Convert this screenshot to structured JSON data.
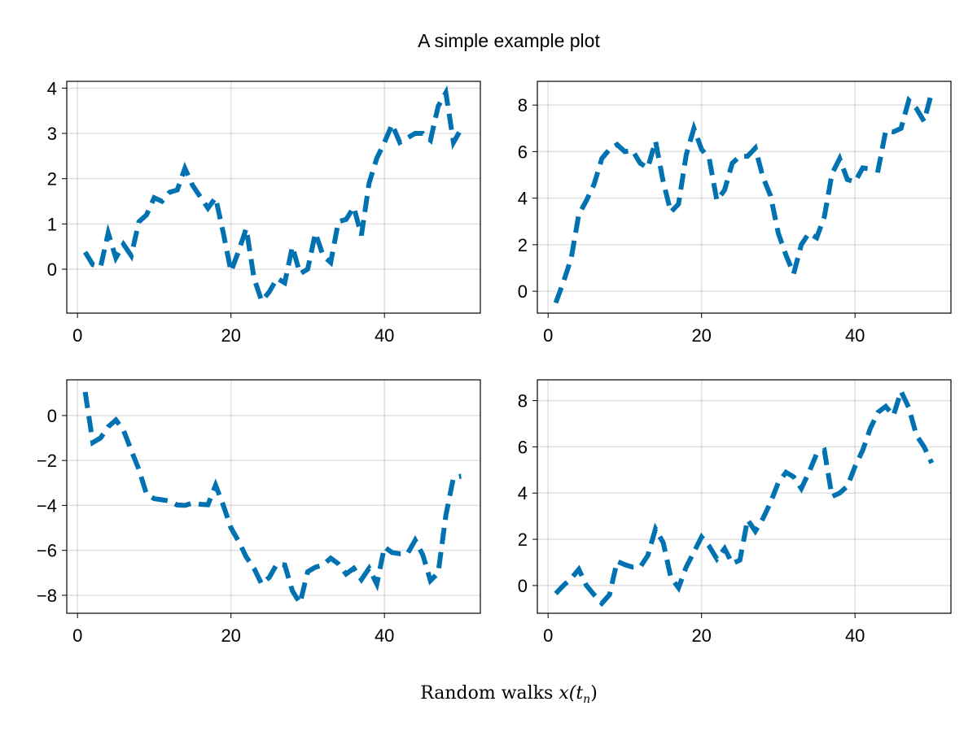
{
  "title": "A simple example plot",
  "xlabel_text": "Random walks ",
  "xlabel_math": "x(t",
  "xlabel_sub": "n",
  "xlabel_close": ")",
  "line_color": "#0072b2",
  "chart_data": [
    {
      "type": "line",
      "line_style": "dashed",
      "grid": true,
      "xlim": [
        -1.4,
        52.5
      ],
      "ylim": [
        -0.97,
        4.15
      ],
      "xticks": [
        0,
        20,
        40
      ],
      "yticks": [
        0,
        1,
        2,
        3,
        4
      ],
      "x": [
        1,
        2,
        3,
        4,
        5,
        6,
        7,
        8,
        9,
        10,
        11,
        12,
        13,
        14,
        15,
        16,
        17,
        18,
        19,
        20,
        21,
        22,
        23,
        24,
        25,
        26,
        27,
        28,
        29,
        30,
        31,
        32,
        33,
        34,
        35,
        36,
        37,
        38,
        39,
        40,
        41,
        42,
        43,
        44,
        45,
        46,
        47,
        48,
        49,
        50
      ],
      "values": [
        0.38,
        0.1,
        0.05,
        0.8,
        0.25,
        0.55,
        0.3,
        1.05,
        1.2,
        1.58,
        1.5,
        1.7,
        1.75,
        2.23,
        1.85,
        1.6,
        1.35,
        1.58,
        0.8,
        -0.05,
        0.4,
        0.9,
        -0.2,
        -0.7,
        -0.5,
        -0.2,
        -0.3,
        0.5,
        -0.1,
        0.0,
        0.8,
        0.3,
        0.15,
        1.05,
        1.1,
        1.37,
        0.75,
        1.9,
        2.45,
        2.8,
        3.2,
        2.8,
        2.9,
        3.0,
        3.0,
        2.85,
        3.6,
        3.9,
        2.8,
        3.1
      ]
    },
    {
      "type": "line",
      "line_style": "dashed",
      "grid": true,
      "xlim": [
        -1.4,
        52.5
      ],
      "ylim": [
        -0.94,
        9.02
      ],
      "xticks": [
        0,
        20,
        40
      ],
      "yticks": [
        0,
        2,
        4,
        6,
        8
      ],
      "x": [
        1,
        2,
        3,
        4,
        5,
        6,
        7,
        8,
        9,
        10,
        11,
        12,
        13,
        14,
        15,
        16,
        17,
        18,
        19,
        20,
        21,
        22,
        23,
        24,
        25,
        26,
        27,
        28,
        29,
        30,
        31,
        32,
        33,
        34,
        35,
        36,
        37,
        38,
        39,
        40,
        41,
        42,
        43,
        44,
        45,
        46,
        47,
        48,
        49,
        50
      ],
      "values": [
        -0.5,
        0.4,
        1.4,
        3.3,
        3.9,
        4.6,
        5.7,
        6.1,
        6.3,
        6.0,
        6.05,
        5.5,
        5.3,
        6.45,
        4.7,
        3.4,
        3.75,
        5.85,
        7.0,
        6.1,
        5.7,
        3.9,
        4.35,
        5.5,
        5.8,
        5.8,
        6.15,
        4.9,
        4.1,
        2.5,
        1.55,
        0.75,
        2.0,
        2.5,
        2.3,
        3.2,
        5.05,
        5.7,
        4.8,
        4.7,
        5.3,
        5.25,
        5.2,
        6.9,
        6.85,
        7.0,
        8.2,
        7.85,
        7.3,
        8.55
      ]
    },
    {
      "type": "line",
      "line_style": "dashed",
      "grid": true,
      "xlim": [
        -1.4,
        52.5
      ],
      "ylim": [
        -8.8,
        1.59
      ],
      "xticks": [
        0,
        20,
        40
      ],
      "yticks": [
        0,
        -2,
        -4,
        -6,
        -8
      ],
      "x": [
        1,
        2,
        3,
        4,
        5,
        6,
        7,
        8,
        9,
        10,
        11,
        12,
        13,
        14,
        15,
        16,
        17,
        18,
        19,
        20,
        21,
        22,
        23,
        24,
        25,
        26,
        27,
        28,
        29,
        30,
        31,
        32,
        33,
        34,
        35,
        36,
        37,
        38,
        39,
        40,
        41,
        42,
        43,
        44,
        45,
        46,
        47,
        48,
        49,
        50
      ],
      "values": [
        1.05,
        -1.2,
        -1.0,
        -0.5,
        -0.2,
        -0.65,
        -1.55,
        -2.4,
        -3.5,
        -3.7,
        -3.75,
        -3.8,
        -3.98,
        -4.0,
        -3.9,
        -3.95,
        -3.97,
        -3.1,
        -4.0,
        -5.0,
        -5.6,
        -6.3,
        -6.8,
        -7.5,
        -7.2,
        -6.6,
        -6.65,
        -7.8,
        -8.35,
        -6.95,
        -6.75,
        -6.65,
        -6.35,
        -6.6,
        -7.05,
        -6.8,
        -7.3,
        -6.8,
        -7.5,
        -5.85,
        -6.1,
        -6.15,
        -6.15,
        -5.55,
        -6.2,
        -7.35,
        -7.0,
        -4.45,
        -2.75,
        -2.7
      ]
    },
    {
      "type": "line",
      "line_style": "dashed",
      "grid": true,
      "xlim": [
        -1.4,
        52.5
      ],
      "ylim": [
        -1.2,
        8.9
      ],
      "xticks": [
        0,
        20,
        40
      ],
      "yticks": [
        0,
        2,
        4,
        6,
        8
      ],
      "x": [
        1,
        2,
        3,
        4,
        5,
        6,
        7,
        8,
        9,
        10,
        11,
        12,
        13,
        14,
        15,
        16,
        17,
        18,
        19,
        20,
        21,
        22,
        23,
        24,
        25,
        26,
        27,
        28,
        29,
        30,
        31,
        32,
        33,
        34,
        35,
        36,
        37,
        38,
        39,
        40,
        41,
        42,
        43,
        44,
        45,
        46,
        47,
        48,
        49,
        50
      ],
      "values": [
        -0.35,
        0.0,
        0.3,
        0.7,
        0.0,
        -0.4,
        -0.77,
        -0.4,
        1.05,
        0.9,
        0.8,
        0.8,
        1.3,
        2.45,
        1.85,
        0.35,
        -0.1,
        0.8,
        1.45,
        2.1,
        1.7,
        1.15,
        1.6,
        0.95,
        1.1,
        2.85,
        2.35,
        2.9,
        3.6,
        4.45,
        4.9,
        4.7,
        4.2,
        4.9,
        5.7,
        5.85,
        3.85,
        4.0,
        4.3,
        5.15,
        5.85,
        6.8,
        7.5,
        7.75,
        7.35,
        8.4,
        7.7,
        6.5,
        6.0,
        5.3
      ]
    }
  ]
}
